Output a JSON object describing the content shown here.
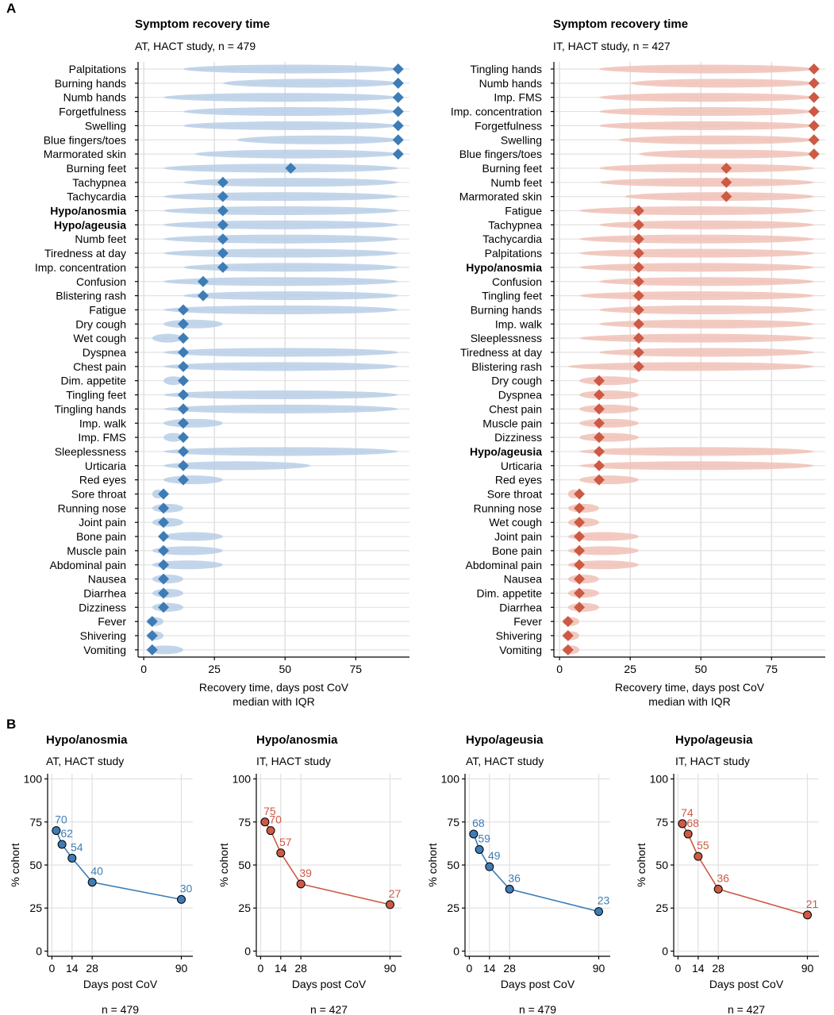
{
  "panel_labels": {
    "A": "A",
    "B": "B"
  },
  "colors": {
    "AT": "#3E7CB5",
    "AT_light": "#B9CEE6",
    "IT": "#CC5A45",
    "IT_light": "#F0C1B6",
    "grid": "#E2E2E2",
    "axis": "#000000",
    "text": "#000000"
  },
  "chart_data": [
    {
      "type": "dot_iqr",
      "id": "AT",
      "title": "Symptom recovery time",
      "subtitle": "AT, HACT study, n = 479",
      "xlabel": "Recovery time, days post CoV",
      "xlabel2": "median with IQR",
      "xlim": [
        -2,
        94
      ],
      "xticks": [
        0,
        25,
        50,
        75
      ],
      "symptoms": [
        {
          "name": "Palpitations",
          "median": 90,
          "q1": 14,
          "q3": 90,
          "bold": false
        },
        {
          "name": "Burning hands",
          "median": 90,
          "q1": 28,
          "q3": 90,
          "bold": false
        },
        {
          "name": "Numb hands",
          "median": 90,
          "q1": 7,
          "q3": 90,
          "bold": false
        },
        {
          "name": "Forgetfulness",
          "median": 90,
          "q1": 14,
          "q3": 90,
          "bold": false
        },
        {
          "name": "Swelling",
          "median": 90,
          "q1": 14,
          "q3": 90,
          "bold": false
        },
        {
          "name": "Blue fingers/toes",
          "median": 90,
          "q1": 33,
          "q3": 90,
          "bold": false
        },
        {
          "name": "Marmorated skin",
          "median": 90,
          "q1": 18,
          "q3": 90,
          "bold": false
        },
        {
          "name": "Burning feet",
          "median": 52,
          "q1": 7,
          "q3": 90,
          "bold": false
        },
        {
          "name": "Tachypnea",
          "median": 28,
          "q1": 14,
          "q3": 90,
          "bold": false
        },
        {
          "name": "Tachycardia",
          "median": 28,
          "q1": 7,
          "q3": 90,
          "bold": false
        },
        {
          "name": "Hypo/anosmia",
          "median": 28,
          "q1": 7,
          "q3": 90,
          "bold": true
        },
        {
          "name": "Hypo/ageusia",
          "median": 28,
          "q1": 7,
          "q3": 90,
          "bold": true
        },
        {
          "name": "Numb feet",
          "median": 28,
          "q1": 7,
          "q3": 90,
          "bold": false
        },
        {
          "name": "Tiredness at day",
          "median": 28,
          "q1": 7,
          "q3": 90,
          "bold": false
        },
        {
          "name": "Imp. concentration",
          "median": 28,
          "q1": 14,
          "q3": 90,
          "bold": false
        },
        {
          "name": "Confusion",
          "median": 21,
          "q1": 7,
          "q3": 90,
          "bold": false
        },
        {
          "name": "Blistering rash",
          "median": 21,
          "q1": 14,
          "q3": 90,
          "bold": false
        },
        {
          "name": "Fatigue",
          "median": 14,
          "q1": 7,
          "q3": 90,
          "bold": false
        },
        {
          "name": "Dry cough",
          "median": 14,
          "q1": 7,
          "q3": 28,
          "bold": false
        },
        {
          "name": "Wet cough",
          "median": 14,
          "q1": 3,
          "q3": 14,
          "bold": false
        },
        {
          "name": "Dyspnea",
          "median": 14,
          "q1": 7,
          "q3": 90,
          "bold": false
        },
        {
          "name": "Chest pain",
          "median": 14,
          "q1": 7,
          "q3": 90,
          "bold": false
        },
        {
          "name": "Dim. appetite",
          "median": 14,
          "q1": 7,
          "q3": 14,
          "bold": false
        },
        {
          "name": "Tingling feet",
          "median": 14,
          "q1": 7,
          "q3": 90,
          "bold": false
        },
        {
          "name": "Tingling hands",
          "median": 14,
          "q1": 7,
          "q3": 90,
          "bold": false
        },
        {
          "name": "Imp. walk",
          "median": 14,
          "q1": 7,
          "q3": 28,
          "bold": false
        },
        {
          "name": "Imp. FMS",
          "median": 14,
          "q1": 7,
          "q3": 14,
          "bold": false
        },
        {
          "name": "Sleeplessness",
          "median": 14,
          "q1": 7,
          "q3": 90,
          "bold": false
        },
        {
          "name": "Urticaria",
          "median": 14,
          "q1": 7,
          "q3": 59,
          "bold": false
        },
        {
          "name": "Red eyes",
          "median": 14,
          "q1": 7,
          "q3": 28,
          "bold": false
        },
        {
          "name": "Sore throat",
          "median": 7,
          "q1": 3,
          "q3": 7,
          "bold": false
        },
        {
          "name": "Running nose",
          "median": 7,
          "q1": 3,
          "q3": 14,
          "bold": false
        },
        {
          "name": "Joint pain",
          "median": 7,
          "q1": 3,
          "q3": 14,
          "bold": false
        },
        {
          "name": "Bone pain",
          "median": 7,
          "q1": 7,
          "q3": 28,
          "bold": false
        },
        {
          "name": "Muscle pain",
          "median": 7,
          "q1": 3,
          "q3": 28,
          "bold": false
        },
        {
          "name": "Abdominal pain",
          "median": 7,
          "q1": 3,
          "q3": 28,
          "bold": false
        },
        {
          "name": "Nausea",
          "median": 7,
          "q1": 3,
          "q3": 14,
          "bold": false
        },
        {
          "name": "Diarrhea",
          "median": 7,
          "q1": 3,
          "q3": 14,
          "bold": false
        },
        {
          "name": "Dizziness",
          "median": 7,
          "q1": 3,
          "q3": 14,
          "bold": false
        },
        {
          "name": "Fever",
          "median": 3,
          "q1": 1,
          "q3": 7,
          "bold": false
        },
        {
          "name": "Shivering",
          "median": 3,
          "q1": 1,
          "q3": 7,
          "bold": false
        },
        {
          "name": "Vomiting",
          "median": 3,
          "q1": 1,
          "q3": 14,
          "bold": false
        }
      ]
    },
    {
      "type": "dot_iqr",
      "id": "IT",
      "title": "Symptom recovery time",
      "subtitle": "IT, HACT study, n = 427",
      "xlabel": "Recovery time, days post CoV",
      "xlabel2": "median with IQR",
      "xlim": [
        -2,
        94
      ],
      "xticks": [
        0,
        25,
        50,
        75
      ],
      "symptoms": [
        {
          "name": "Tingling hands",
          "median": 90,
          "q1": 14,
          "q3": 90,
          "bold": false
        },
        {
          "name": "Numb hands",
          "median": 90,
          "q1": 25,
          "q3": 90,
          "bold": false
        },
        {
          "name": "Imp. FMS",
          "median": 90,
          "q1": 14,
          "q3": 90,
          "bold": false
        },
        {
          "name": "Imp. concentration",
          "median": 90,
          "q1": 14,
          "q3": 90,
          "bold": false
        },
        {
          "name": "Forgetfulness",
          "median": 90,
          "q1": 14,
          "q3": 90,
          "bold": false
        },
        {
          "name": "Swelling",
          "median": 90,
          "q1": 21,
          "q3": 90,
          "bold": false
        },
        {
          "name": "Blue fingers/toes",
          "median": 90,
          "q1": 28,
          "q3": 90,
          "bold": false
        },
        {
          "name": "Burning feet",
          "median": 59,
          "q1": 14,
          "q3": 90,
          "bold": false
        },
        {
          "name": "Numb feet",
          "median": 59,
          "q1": 14,
          "q3": 90,
          "bold": false
        },
        {
          "name": "Marmorated skin",
          "median": 59,
          "q1": 23,
          "q3": 90,
          "bold": false
        },
        {
          "name": "Fatigue",
          "median": 28,
          "q1": 7,
          "q3": 90,
          "bold": false
        },
        {
          "name": "Tachypnea",
          "median": 28,
          "q1": 14,
          "q3": 90,
          "bold": false
        },
        {
          "name": "Tachycardia",
          "median": 28,
          "q1": 7,
          "q3": 90,
          "bold": false
        },
        {
          "name": "Palpitations",
          "median": 28,
          "q1": 7,
          "q3": 90,
          "bold": false
        },
        {
          "name": "Hypo/anosmia",
          "median": 28,
          "q1": 7,
          "q3": 90,
          "bold": true
        },
        {
          "name": "Confusion",
          "median": 28,
          "q1": 14,
          "q3": 90,
          "bold": false
        },
        {
          "name": "Tingling feet",
          "median": 28,
          "q1": 7,
          "q3": 90,
          "bold": false
        },
        {
          "name": "Burning hands",
          "median": 28,
          "q1": 14,
          "q3": 90,
          "bold": false
        },
        {
          "name": "Imp. walk",
          "median": 28,
          "q1": 14,
          "q3": 90,
          "bold": false
        },
        {
          "name": "Sleeplessness",
          "median": 28,
          "q1": 7,
          "q3": 90,
          "bold": false
        },
        {
          "name": "Tiredness at day",
          "median": 28,
          "q1": 14,
          "q3": 90,
          "bold": false
        },
        {
          "name": "Blistering rash",
          "median": 28,
          "q1": 3,
          "q3": 90,
          "bold": false
        },
        {
          "name": "Dry cough",
          "median": 14,
          "q1": 7,
          "q3": 28,
          "bold": false
        },
        {
          "name": "Dyspnea",
          "median": 14,
          "q1": 7,
          "q3": 28,
          "bold": false
        },
        {
          "name": "Chest pain",
          "median": 14,
          "q1": 7,
          "q3": 28,
          "bold": false
        },
        {
          "name": "Muscle pain",
          "median": 14,
          "q1": 7,
          "q3": 28,
          "bold": false
        },
        {
          "name": "Dizziness",
          "median": 14,
          "q1": 7,
          "q3": 28,
          "bold": false
        },
        {
          "name": "Hypo/ageusia",
          "median": 14,
          "q1": 7,
          "q3": 90,
          "bold": true
        },
        {
          "name": "Urticaria",
          "median": 14,
          "q1": 7,
          "q3": 90,
          "bold": false
        },
        {
          "name": "Red eyes",
          "median": 14,
          "q1": 7,
          "q3": 28,
          "bold": false
        },
        {
          "name": "Sore throat",
          "median": 7,
          "q1": 3,
          "q3": 7,
          "bold": false
        },
        {
          "name": "Running nose",
          "median": 7,
          "q1": 3,
          "q3": 14,
          "bold": false
        },
        {
          "name": "Wet cough",
          "median": 7,
          "q1": 3,
          "q3": 14,
          "bold": false
        },
        {
          "name": "Joint pain",
          "median": 7,
          "q1": 3,
          "q3": 28,
          "bold": false
        },
        {
          "name": "Bone pain",
          "median": 7,
          "q1": 3,
          "q3": 28,
          "bold": false
        },
        {
          "name": "Abdominal pain",
          "median": 7,
          "q1": 3,
          "q3": 28,
          "bold": false
        },
        {
          "name": "Nausea",
          "median": 7,
          "q1": 3,
          "q3": 14,
          "bold": false
        },
        {
          "name": "Dim. appetite",
          "median": 7,
          "q1": 3,
          "q3": 14,
          "bold": false
        },
        {
          "name": "Diarrhea",
          "median": 7,
          "q1": 3,
          "q3": 14,
          "bold": false
        },
        {
          "name": "Fever",
          "median": 3,
          "q1": 1,
          "q3": 7,
          "bold": false
        },
        {
          "name": "Shivering",
          "median": 3,
          "q1": 1,
          "q3": 7,
          "bold": false
        },
        {
          "name": "Vomiting",
          "median": 3,
          "q1": 1,
          "q3": 7,
          "bold": false
        }
      ]
    },
    {
      "type": "line",
      "id": "B1",
      "color": "AT",
      "title": "Hypo/anosmia",
      "subtitle": "AT, HACT study",
      "xlabel": "Days post CoV",
      "ylabel": "% cohort",
      "footer": "n = 479",
      "xlim": [
        -3,
        98
      ],
      "ylim": [
        -3,
        103
      ],
      "xticks": [
        0,
        14,
        28,
        90
      ],
      "yticks": [
        0,
        25,
        50,
        75,
        100
      ],
      "x": [
        3,
        7,
        14,
        28,
        90
      ],
      "values": [
        70,
        62,
        54,
        40,
        30
      ]
    },
    {
      "type": "line",
      "id": "B2",
      "color": "IT",
      "title": "Hypo/anosmia",
      "subtitle": "IT, HACT study",
      "xlabel": "Days post CoV",
      "ylabel": "% cohort",
      "footer": "n = 427",
      "xlim": [
        -3,
        98
      ],
      "ylim": [
        -3,
        103
      ],
      "xticks": [
        0,
        14,
        28,
        90
      ],
      "yticks": [
        0,
        25,
        50,
        75,
        100
      ],
      "x": [
        3,
        7,
        14,
        28,
        90
      ],
      "values": [
        75,
        70,
        57,
        39,
        27
      ]
    },
    {
      "type": "line",
      "id": "B3",
      "color": "AT",
      "title": "Hypo/ageusia",
      "subtitle": "AT, HACT study",
      "xlabel": "Days post CoV",
      "ylabel": "% cohort",
      "footer": "n = 479",
      "xlim": [
        -3,
        98
      ],
      "ylim": [
        -3,
        103
      ],
      "xticks": [
        0,
        14,
        28,
        90
      ],
      "yticks": [
        0,
        25,
        50,
        75,
        100
      ],
      "x": [
        3,
        7,
        14,
        28,
        90
      ],
      "values": [
        68,
        59,
        49,
        36,
        23
      ]
    },
    {
      "type": "line",
      "id": "B4",
      "color": "IT",
      "title": "Hypo/ageusia",
      "subtitle": "IT, HACT study",
      "xlabel": "Days post CoV",
      "ylabel": "% cohort",
      "footer": "n = 427",
      "xlim": [
        -3,
        98
      ],
      "ylim": [
        -3,
        103
      ],
      "xticks": [
        0,
        14,
        28,
        90
      ],
      "yticks": [
        0,
        25,
        50,
        75,
        100
      ],
      "x": [
        3,
        7,
        14,
        28,
        90
      ],
      "values": [
        74,
        68,
        55,
        36,
        21
      ]
    }
  ]
}
